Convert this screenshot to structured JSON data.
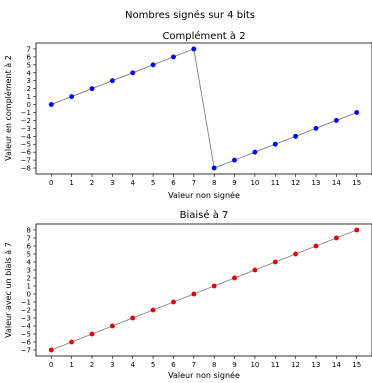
{
  "figure_title": "Nombres signés sur 4 bits",
  "chart_data": [
    {
      "type": "line",
      "title": "Complément à 2",
      "xlabel": "Valeur non signée",
      "ylabel": "Valeur en complément à 2",
      "x": [
        0,
        1,
        2,
        3,
        4,
        5,
        6,
        7,
        8,
        9,
        10,
        11,
        12,
        13,
        14,
        15
      ],
      "values": [
        0,
        1,
        2,
        3,
        4,
        5,
        6,
        7,
        -8,
        -7,
        -6,
        -5,
        -4,
        -3,
        -2,
        -1
      ],
      "xlim": [
        -0.75,
        15.75
      ],
      "ylim": [
        -8.75,
        7.75
      ],
      "xticks": [
        0,
        1,
        2,
        3,
        4,
        5,
        6,
        7,
        8,
        9,
        10,
        11,
        12,
        13,
        14,
        15
      ],
      "yticks": [
        -8,
        -7,
        -6,
        -5,
        -4,
        -3,
        -2,
        -1,
        0,
        1,
        2,
        3,
        4,
        5,
        6,
        7
      ],
      "marker_color": "#0000ff",
      "line_color": "#7f7f7f",
      "grid": false
    },
    {
      "type": "line",
      "title": "Biaisé à 7",
      "xlabel": "Valeur non signée",
      "ylabel": "Valeur avec un biais à 7",
      "x": [
        0,
        1,
        2,
        3,
        4,
        5,
        6,
        7,
        8,
        9,
        10,
        11,
        12,
        13,
        14,
        15
      ],
      "values": [
        -7,
        -6,
        -5,
        -4,
        -3,
        -2,
        -1,
        0,
        1,
        2,
        3,
        4,
        5,
        6,
        7,
        8
      ],
      "xlim": [
        -0.75,
        15.75
      ],
      "ylim": [
        -7.75,
        8.75
      ],
      "xticks": [
        0,
        1,
        2,
        3,
        4,
        5,
        6,
        7,
        8,
        9,
        10,
        11,
        12,
        13,
        14,
        15
      ],
      "yticks": [
        -7,
        -6,
        -5,
        -4,
        -3,
        -2,
        -1,
        0,
        1,
        2,
        3,
        4,
        5,
        6,
        7,
        8
      ],
      "marker_color": "#e00000",
      "line_color": "#7f7f7f",
      "grid": false
    }
  ]
}
